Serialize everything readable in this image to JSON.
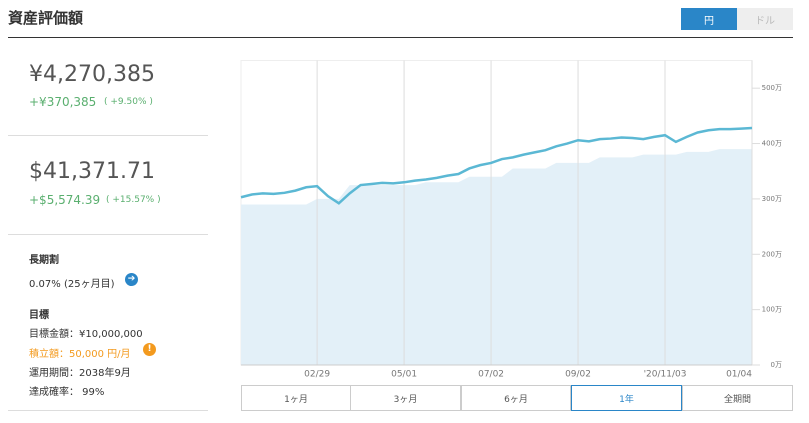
{
  "header": {
    "title": "資産評価額",
    "currency_buttons": [
      "円",
      "ドル"
    ]
  },
  "summary": {
    "jpy": {
      "total": "¥4,270,385",
      "gain": "+¥370,385",
      "gain_pct": "( +9.50% )"
    },
    "usd": {
      "total": "$41,371.71",
      "gain": "+$5,574.39",
      "gain_pct": "( +15.57% )"
    }
  },
  "discount": {
    "title": "長期割",
    "value": "0.07% (25ヶ月目)"
  },
  "goal": {
    "title": "目標",
    "amount": "目標金額：¥10,000,000",
    "monthly": "積立額：50,000 円/月",
    "period": "運用期間：2038年9月",
    "probability": "達成確率： 99%"
  },
  "periods": [
    "1ヶ月",
    "3ヶ月",
    "6ヶ月",
    "1年",
    "全期間"
  ],
  "chart_data": {
    "type": "line",
    "categories": [
      null,
      null,
      null,
      null,
      null,
      null,
      null,
      "02/29",
      null,
      null,
      null,
      null,
      null,
      null,
      null,
      "05/01",
      null,
      null,
      null,
      null,
      null,
      null,
      null,
      "07/02",
      null,
      null,
      null,
      null,
      null,
      null,
      null,
      "09/02",
      null,
      null,
      null,
      null,
      null,
      null,
      null,
      "'20/11/03",
      null,
      null,
      null,
      null,
      null,
      null,
      null,
      "01/04"
    ],
    "series": [
      {
        "color": "#5bb8d4",
        "values": [
          303,
          308,
          310,
          309,
          311,
          315,
          321,
          323,
          305,
          292,
          310,
          325,
          327,
          329,
          328,
          330,
          333,
          335,
          338,
          342,
          345,
          355,
          361,
          365,
          372,
          375,
          380,
          384,
          388,
          395,
          400,
          406,
          404,
          408,
          409,
          411,
          410,
          408,
          412,
          415,
          403,
          412,
          420,
          424,
          426,
          426,
          427,
          428
        ]
      },
      {
        "color": "#e3f0f8",
        "values": [
          290,
          290,
          290,
          290,
          290,
          290,
          290,
          300,
          300,
          300,
          325,
          325,
          325,
          325,
          325,
          325,
          325,
          330,
          330,
          330,
          330,
          340,
          340,
          340,
          340,
          355,
          355,
          355,
          355,
          365,
          365,
          365,
          365,
          375,
          375,
          375,
          375,
          380,
          380,
          380,
          380,
          385,
          385,
          385,
          390,
          390,
          390,
          390
        ]
      }
    ],
    "ylim": [
      0,
      550
    ],
    "yticks": [
      {
        "value": 0,
        "label": "0万"
      },
      {
        "value": 100,
        "label": "100万"
      },
      {
        "value": 200,
        "label": "200万"
      },
      {
        "value": 300,
        "label": "300万"
      },
      {
        "value": 400,
        "label": "400万"
      },
      {
        "value": 500,
        "label": "500万"
      }
    ],
    "grid": true
  }
}
